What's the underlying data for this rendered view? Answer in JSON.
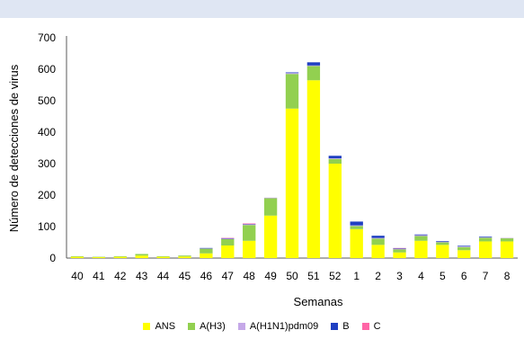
{
  "chart_data": {
    "type": "bar",
    "stacked": true,
    "title": "",
    "xlabel": "Semanas",
    "ylabel": "Número de detecciones de virus",
    "ylim": [
      0,
      700
    ],
    "yticks": [
      0,
      100,
      200,
      300,
      400,
      500,
      600,
      700
    ],
    "grid": false,
    "legend_position": "bottom",
    "categories": [
      "40",
      "41",
      "42",
      "43",
      "44",
      "45",
      "46",
      "47",
      "48",
      "49",
      "50",
      "51",
      "52",
      "1",
      "2",
      "3",
      "4",
      "5",
      "6",
      "7",
      "8"
    ],
    "series": [
      {
        "name": "ANS",
        "color": "#ffff00",
        "values": [
          4,
          3,
          4,
          8,
          4,
          5,
          15,
          40,
          55,
          135,
          475,
          565,
          300,
          92,
          42,
          18,
          55,
          42,
          25,
          53,
          53
        ]
      },
      {
        "name": "A(H3)",
        "color": "#92d050",
        "values": [
          2,
          1,
          2,
          5,
          2,
          3,
          15,
          20,
          50,
          55,
          110,
          45,
          15,
          10,
          20,
          10,
          15,
          8,
          10,
          12,
          10
        ]
      },
      {
        "name": "A(H1N1)pdm09",
        "color": "#c5a8e8",
        "values": [
          0,
          0,
          0,
          0,
          0,
          0,
          1,
          2,
          2,
          2,
          3,
          2,
          2,
          2,
          2,
          1,
          3,
          2,
          2,
          1,
          1
        ]
      },
      {
        "name": "B",
        "color": "#1f3fc2",
        "values": [
          0,
          0,
          0,
          0,
          0,
          0,
          1,
          1,
          1,
          0,
          2,
          10,
          8,
          12,
          7,
          2,
          2,
          2,
          2,
          2,
          0
        ]
      },
      {
        "name": "C",
        "color": "#ff66a6",
        "values": [
          0,
          0,
          0,
          0,
          0,
          0,
          0,
          1,
          2,
          0,
          0,
          0,
          0,
          0,
          0,
          1,
          0,
          0,
          0,
          0,
          0
        ]
      }
    ]
  }
}
